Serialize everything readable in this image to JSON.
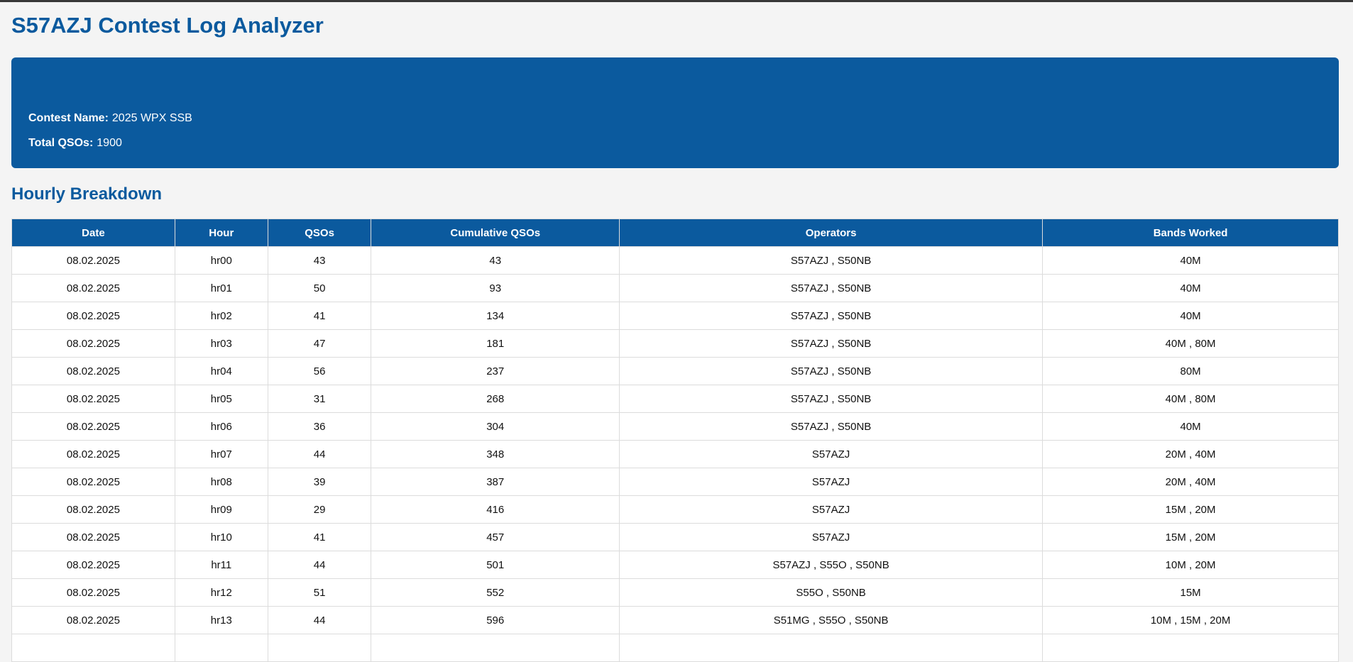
{
  "page": {
    "title": "S57AZJ Contest Log Analyzer",
    "section_title": "Hourly Breakdown"
  },
  "summary": {
    "contest_name_label": "Contest Name:",
    "contest_name_value": "2025 WPX SSB",
    "total_qsos_label": "Total QSOs:",
    "total_qsos_value": "1900"
  },
  "colors": {
    "accent_blue": "#0B5A9E",
    "page_background": "#F4F4F4",
    "table_border": "#DCDCDC",
    "top_border": "#383838",
    "header_text": "#FFFFFF"
  },
  "table": {
    "columns": [
      "Date",
      "Hour",
      "QSOs",
      "Cumulative QSOs",
      "Operators",
      "Bands Worked"
    ],
    "rows": [
      [
        "08.02.2025",
        "hr00",
        "43",
        "43",
        "S57AZJ , S50NB",
        "40M"
      ],
      [
        "08.02.2025",
        "hr01",
        "50",
        "93",
        "S57AZJ , S50NB",
        "40M"
      ],
      [
        "08.02.2025",
        "hr02",
        "41",
        "134",
        "S57AZJ , S50NB",
        "40M"
      ],
      [
        "08.02.2025",
        "hr03",
        "47",
        "181",
        "S57AZJ , S50NB",
        "40M , 80M"
      ],
      [
        "08.02.2025",
        "hr04",
        "56",
        "237",
        "S57AZJ , S50NB",
        "80M"
      ],
      [
        "08.02.2025",
        "hr05",
        "31",
        "268",
        "S57AZJ , S50NB",
        "40M , 80M"
      ],
      [
        "08.02.2025",
        "hr06",
        "36",
        "304",
        "S57AZJ , S50NB",
        "40M"
      ],
      [
        "08.02.2025",
        "hr07",
        "44",
        "348",
        "S57AZJ",
        "20M , 40M"
      ],
      [
        "08.02.2025",
        "hr08",
        "39",
        "387",
        "S57AZJ",
        "20M , 40M"
      ],
      [
        "08.02.2025",
        "hr09",
        "29",
        "416",
        "S57AZJ",
        "15M , 20M"
      ],
      [
        "08.02.2025",
        "hr10",
        "41",
        "457",
        "S57AZJ",
        "15M , 20M"
      ],
      [
        "08.02.2025",
        "hr11",
        "44",
        "501",
        "S57AZJ , S55O , S50NB",
        "10M , 20M"
      ],
      [
        "08.02.2025",
        "hr12",
        "51",
        "552",
        "S55O , S50NB",
        "15M"
      ],
      [
        "08.02.2025",
        "hr13",
        "44",
        "596",
        "S51MG , S55O , S50NB",
        "10M , 15M , 20M"
      ]
    ]
  }
}
